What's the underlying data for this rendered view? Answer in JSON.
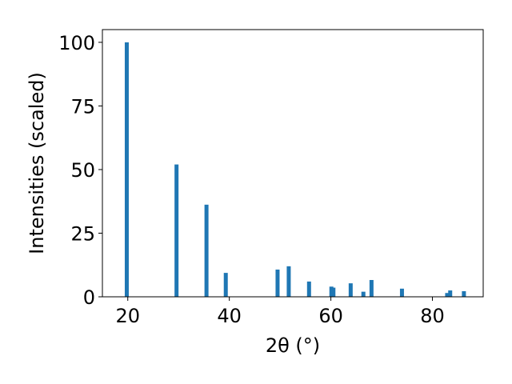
{
  "chart_data": {
    "type": "bar",
    "x": [
      19.8,
      29.6,
      35.5,
      39.3,
      49.5,
      51.7,
      55.7,
      60.1,
      60.5,
      63.9,
      66.4,
      68.0,
      74.0,
      82.9,
      83.5,
      86.2
    ],
    "values": [
      100,
      52,
      36.2,
      9.4,
      10.7,
      12,
      6,
      4,
      3.6,
      5.3,
      2,
      6.6,
      3.2,
      1.5,
      2.5,
      2.2
    ],
    "color": "#1f77b4",
    "xlabel": "2θ (°)",
    "ylabel": "Intensities (scaled)",
    "xlim": [
      15,
      90
    ],
    "ylim": [
      0,
      105
    ],
    "xticks": [
      20,
      40,
      60,
      80
    ],
    "yticks": [
      0,
      25,
      50,
      75,
      100
    ]
  }
}
